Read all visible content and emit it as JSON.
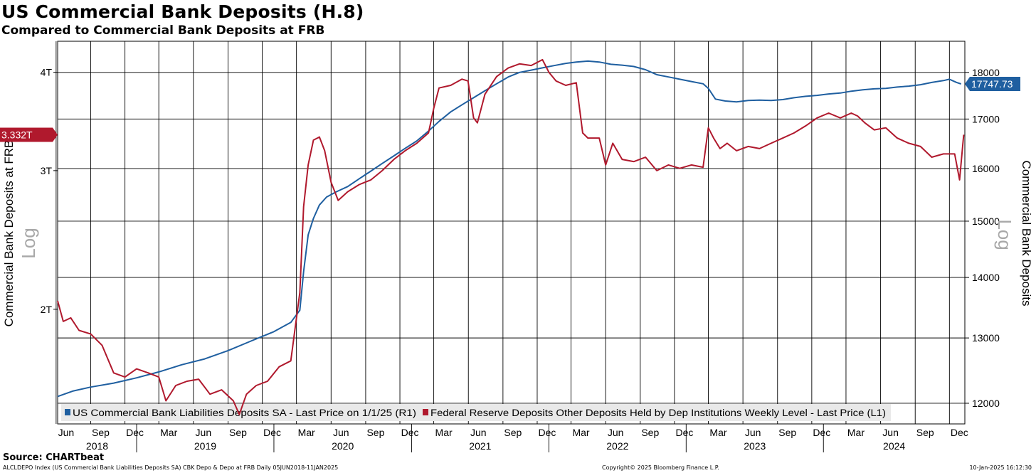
{
  "header": {
    "title": "US Commercial Bank Deposits (H.8)",
    "subtitle": "Compared to Commercial Bank Deposits at FRB"
  },
  "footer": {
    "source": "Source: CHARTbeat",
    "index_info": "ALCLDEPO Index (US Commercial Bank Liabilities Deposits SA) CBK Depo & Depo at FRB  Daily 05JUN2018-11JAN2025",
    "copyright": "Copyright© 2025 Bloomberg Finance L.P.",
    "timestamp": "10-Jan-2025 16:12:30"
  },
  "colors": {
    "blue_series": "#1f5fa0",
    "red_series": "#b0192d",
    "grid": "#000000"
  },
  "chart_data": {
    "type": "line",
    "x_range": [
      "2018-06-05",
      "2025-01-11"
    ],
    "x_month_ticks": [
      "Jun",
      "Sep",
      "Dec",
      "Mar",
      "Jun",
      "Sep",
      "Dec",
      "Mar",
      "Jun",
      "Sep",
      "Dec",
      "Mar",
      "Jun",
      "Sep",
      "Dec",
      "Mar",
      "Jun",
      "Sep",
      "Dec",
      "Mar",
      "Jun",
      "Sep",
      "Dec",
      "Mar",
      "Jun",
      "Sep",
      "Dec"
    ],
    "x_year_ticks": [
      "2018",
      "2019",
      "2020",
      "2021",
      "2022",
      "2023",
      "2024"
    ],
    "left_axis": {
      "label": "Commercial Bank Deposits at FRB",
      "scale_note": "Log",
      "log_scale": true,
      "ticks": [
        "2T",
        "3T",
        "4T"
      ],
      "tick_values": [
        2,
        3,
        4
      ],
      "range": [
        1.43,
        4.38
      ],
      "last_value_label": "3.332T"
    },
    "right_axis": {
      "label": "Commercial Bank Deposits",
      "scale_note": "Log",
      "log_scale": true,
      "ticks": [
        "12000",
        "13000",
        "14000",
        "15000",
        "16000",
        "17000",
        "18000"
      ],
      "tick_values": [
        12000,
        13000,
        14000,
        15000,
        16000,
        17000,
        18000
      ],
      "range": [
        11700,
        18700
      ],
      "last_value_label": "17747.73"
    },
    "grid": true,
    "legend_position": "bottom-left",
    "series": [
      {
        "name": "US Commercial Bank Liabilities Deposits SA - Last Price on 1/1/25 (R1)",
        "axis": "right",
        "color": "#1f5fa0",
        "x": [
          "2018-06-05",
          "2018-07-15",
          "2018-09-01",
          "2018-11-01",
          "2019-01-01",
          "2019-03-01",
          "2019-05-01",
          "2019-07-01",
          "2019-09-01",
          "2019-11-01",
          "2020-01-01",
          "2020-02-15",
          "2020-03-10",
          "2020-03-20",
          "2020-04-01",
          "2020-04-15",
          "2020-05-01",
          "2020-05-20",
          "2020-06-15",
          "2020-07-15",
          "2020-08-15",
          "2020-09-15",
          "2020-10-15",
          "2020-11-15",
          "2020-12-15",
          "2021-01-15",
          "2021-02-15",
          "2021-03-15",
          "2021-04-15",
          "2021-05-15",
          "2021-06-15",
          "2021-07-15",
          "2021-08-15",
          "2021-09-15",
          "2021-10-15",
          "2021-11-15",
          "2021-12-15",
          "2022-01-15",
          "2022-02-15",
          "2022-03-15",
          "2022-04-15",
          "2022-05-15",
          "2022-06-15",
          "2022-07-15",
          "2022-08-15",
          "2022-09-15",
          "2022-10-15",
          "2022-11-15",
          "2022-12-15",
          "2023-01-15",
          "2023-02-15",
          "2023-03-01",
          "2023-03-20",
          "2023-04-15",
          "2023-05-15",
          "2023-06-15",
          "2023-07-15",
          "2023-08-15",
          "2023-09-15",
          "2023-10-15",
          "2023-11-15",
          "2023-12-15",
          "2024-01-15",
          "2024-02-15",
          "2024-03-15",
          "2024-04-15",
          "2024-05-15",
          "2024-06-15",
          "2024-07-15",
          "2024-08-15",
          "2024-09-15",
          "2024-10-15",
          "2024-11-15",
          "2024-12-01",
          "2024-12-20",
          "2025-01-01"
        ],
        "values": [
          12100,
          12180,
          12240,
          12300,
          12380,
          12470,
          12580,
          12670,
          12800,
          12950,
          13100,
          13250,
          13450,
          14100,
          14750,
          15050,
          15300,
          15450,
          15550,
          15650,
          15800,
          15950,
          16100,
          16250,
          16400,
          16550,
          16750,
          16950,
          17150,
          17300,
          17450,
          17600,
          17750,
          17900,
          18000,
          18050,
          18100,
          18150,
          18200,
          18230,
          18250,
          18230,
          18180,
          18160,
          18130,
          18060,
          17950,
          17900,
          17850,
          17800,
          17750,
          17650,
          17420,
          17380,
          17360,
          17390,
          17400,
          17390,
          17410,
          17450,
          17480,
          17500,
          17530,
          17550,
          17590,
          17620,
          17640,
          17650,
          17680,
          17700,
          17730,
          17780,
          17820,
          17850,
          17780,
          17747.73
        ]
      },
      {
        "name": "Federal Reserve Deposits Other Deposits Held by Dep Institutions Weekly Level - Last Price (L1)",
        "axis": "left",
        "color": "#b0192d",
        "x": [
          "2018-06-05",
          "2018-06-20",
          "2018-07-10",
          "2018-08-01",
          "2018-09-01",
          "2018-10-01",
          "2018-11-01",
          "2018-12-01",
          "2019-01-01",
          "2019-02-01",
          "2019-03-01",
          "2019-03-20",
          "2019-04-15",
          "2019-05-15",
          "2019-06-15",
          "2019-07-15",
          "2019-08-15",
          "2019-09-15",
          "2019-10-01",
          "2019-10-20",
          "2019-11-15",
          "2019-12-15",
          "2020-01-15",
          "2020-02-15",
          "2020-03-10",
          "2020-03-20",
          "2020-04-01",
          "2020-04-15",
          "2020-05-01",
          "2020-05-15",
          "2020-06-01",
          "2020-06-20",
          "2020-07-15",
          "2020-08-15",
          "2020-09-15",
          "2020-10-15",
          "2020-11-15",
          "2020-12-15",
          "2021-01-15",
          "2021-02-15",
          "2021-03-01",
          "2021-03-15",
          "2021-04-15",
          "2021-05-15",
          "2021-05-31",
          "2021-06-15",
          "2021-06-25",
          "2021-07-15",
          "2021-08-15",
          "2021-09-15",
          "2021-10-15",
          "2021-11-15",
          "2021-12-15",
          "2022-01-01",
          "2022-01-20",
          "2022-02-15",
          "2022-03-15",
          "2022-04-01",
          "2022-04-15",
          "2022-05-15",
          "2022-06-01",
          "2022-06-20",
          "2022-07-15",
          "2022-08-15",
          "2022-09-15",
          "2022-10-15",
          "2022-11-15",
          "2022-12-15",
          "2023-01-15",
          "2023-02-15",
          "2023-03-01",
          "2023-03-15",
          "2023-04-01",
          "2023-04-20",
          "2023-05-15",
          "2023-06-15",
          "2023-07-15",
          "2023-08-15",
          "2023-09-15",
          "2023-10-15",
          "2023-11-15",
          "2023-12-15",
          "2024-01-15",
          "2024-02-15",
          "2024-03-15",
          "2024-04-01",
          "2024-04-20",
          "2024-05-15",
          "2024-06-15",
          "2024-07-15",
          "2024-08-15",
          "2024-09-15",
          "2024-10-15",
          "2024-11-15",
          "2024-12-15",
          "2024-12-28",
          "2025-01-08"
        ],
        "values": [
          2.05,
          1.93,
          1.95,
          1.88,
          1.86,
          1.8,
          1.66,
          1.64,
          1.68,
          1.66,
          1.64,
          1.53,
          1.6,
          1.62,
          1.63,
          1.56,
          1.58,
          1.53,
          1.47,
          1.56,
          1.6,
          1.62,
          1.69,
          1.72,
          2.1,
          2.7,
          3.05,
          3.28,
          3.31,
          3.18,
          2.9,
          2.75,
          2.82,
          2.88,
          2.92,
          3.0,
          3.1,
          3.18,
          3.25,
          3.35,
          3.6,
          3.82,
          3.85,
          3.92,
          3.9,
          3.5,
          3.45,
          3.75,
          3.95,
          4.05,
          4.1,
          4.08,
          4.15,
          4.0,
          3.9,
          3.85,
          3.88,
          3.35,
          3.3,
          3.3,
          3.05,
          3.25,
          3.1,
          3.08,
          3.12,
          3.0,
          3.05,
          3.02,
          3.05,
          3.03,
          3.4,
          3.3,
          3.2,
          3.25,
          3.18,
          3.22,
          3.2,
          3.25,
          3.3,
          3.35,
          3.42,
          3.5,
          3.55,
          3.5,
          3.55,
          3.52,
          3.45,
          3.38,
          3.4,
          3.3,
          3.25,
          3.22,
          3.12,
          3.15,
          3.15,
          2.92,
          3.332
        ]
      }
    ]
  }
}
